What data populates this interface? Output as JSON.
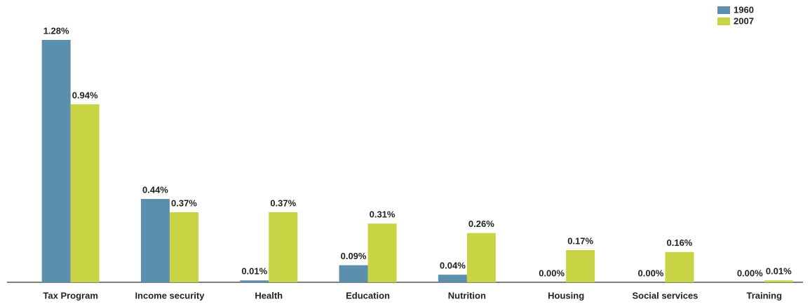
{
  "chart_data": {
    "type": "bar",
    "categories": [
      "Tax Program",
      "Income security",
      "Health",
      "Education",
      "Nutrition",
      "Housing",
      "Social services",
      "Training"
    ],
    "series": [
      {
        "name": "1960",
        "color": "#5b8fad",
        "values": [
          1.28,
          0.44,
          0.01,
          0.09,
          0.04,
          0.0,
          0.0,
          0.0
        ],
        "value_labels": [
          "1.28%",
          "0.44%",
          "0.01%",
          "0.09%",
          "0.04%",
          "0.00%",
          "0.00%",
          "0.00%"
        ]
      },
      {
        "name": "2007",
        "color": "#c8d444",
        "values": [
          0.94,
          0.37,
          0.37,
          0.31,
          0.26,
          0.17,
          0.16,
          0.01
        ],
        "value_labels": [
          "0.94%",
          "0.37%",
          "0.37%",
          "0.31%",
          "0.26%",
          "0.17%",
          "0.16%",
          "0.01%"
        ]
      }
    ],
    "legend": "top-right"
  }
}
